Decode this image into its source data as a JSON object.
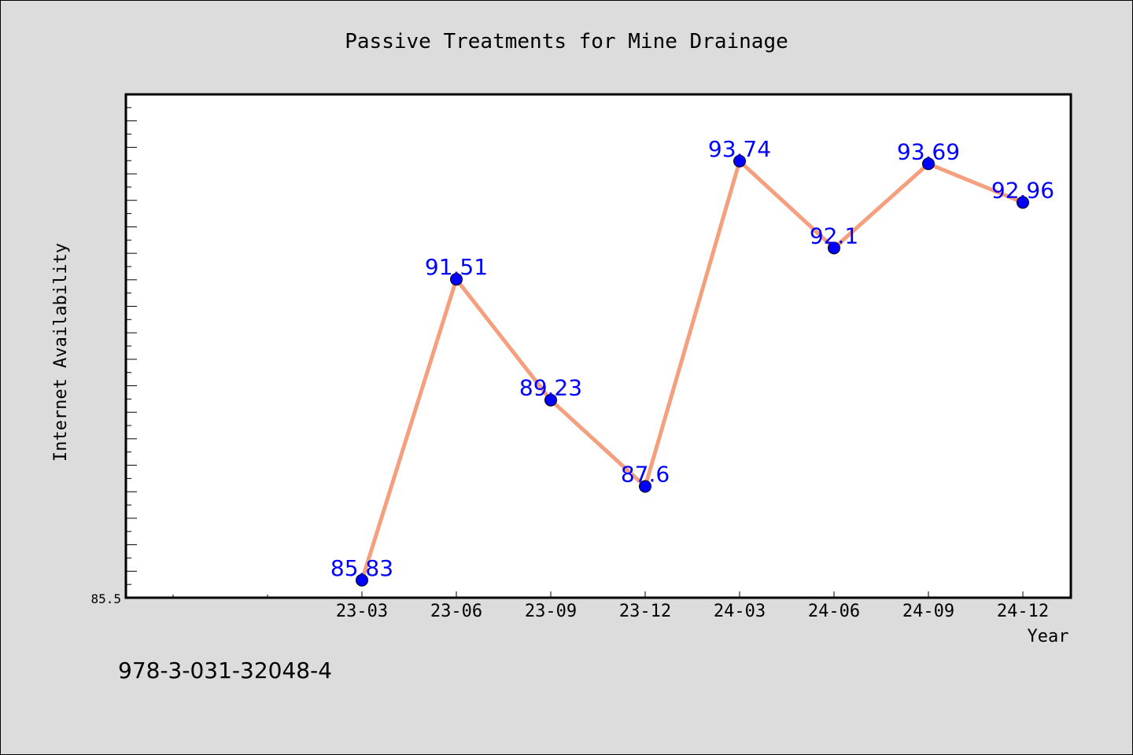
{
  "chart_data": {
    "type": "line",
    "title": "Passive Treatments for Mine Drainage",
    "xlabel": "Year",
    "ylabel": "Internet Availability",
    "categories": [
      "23-03",
      "23-06",
      "23-09",
      "23-12",
      "24-03",
      "24-06",
      "24-09",
      "24-12"
    ],
    "values": [
      85.83,
      91.51,
      89.23,
      87.6,
      93.74,
      92.1,
      93.69,
      92.96
    ],
    "data_labels": [
      "85.83",
      "91.51",
      "89.23",
      "87.6",
      "93.74",
      "92.1",
      "93.69",
      "92.96"
    ],
    "y_tick_labels": [
      "85.5"
    ],
    "ylim": [
      85.5,
      95.0
    ],
    "grid": false,
    "legend": "none",
    "colors": {
      "line": "#f4a07f",
      "marker": "#0000ff",
      "data_label": "#0000ff",
      "plot_bg": "#ffffff",
      "page_bg": "#dcdcdc"
    }
  },
  "footer": {
    "isbn": "978-3-031-32048-4"
  }
}
